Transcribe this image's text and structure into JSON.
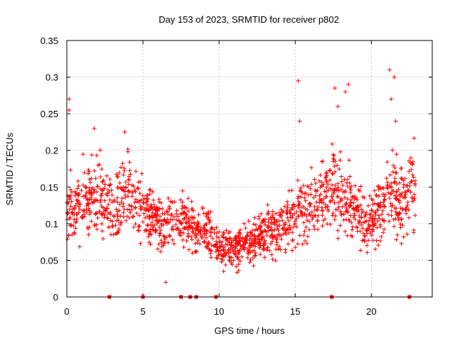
{
  "chart_data": {
    "type": "scatter",
    "title": "Day 153 of 2023, SRMTID for receiver p802",
    "xlabel": "GPS time / hours",
    "ylabel": "SRMTID / TECUs",
    "xlim": [
      0,
      24
    ],
    "ylim": [
      0,
      0.35
    ],
    "x_ticks": [
      0,
      5,
      10,
      15,
      20
    ],
    "y_ticks": [
      0,
      0.05,
      0.1,
      0.15,
      0.2,
      0.25,
      0.3,
      0.35
    ],
    "grid": true,
    "marker": "+",
    "series_color": "#ff0000",
    "gap_marker_hours": [
      2.8,
      5.0,
      7.5,
      8.1,
      8.5,
      9.8,
      17.4,
      22.5
    ],
    "envelope": [
      {
        "x": 0.0,
        "y": 0.11
      },
      {
        "x": 1.0,
        "y": 0.13
      },
      {
        "x": 2.0,
        "y": 0.14
      },
      {
        "x": 3.0,
        "y": 0.12
      },
      {
        "x": 4.0,
        "y": 0.14
      },
      {
        "x": 5.0,
        "y": 0.12
      },
      {
        "x": 6.0,
        "y": 0.1
      },
      {
        "x": 7.0,
        "y": 0.1
      },
      {
        "x": 8.0,
        "y": 0.1
      },
      {
        "x": 9.0,
        "y": 0.09
      },
      {
        "x": 10.0,
        "y": 0.07
      },
      {
        "x": 11.0,
        "y": 0.065
      },
      {
        "x": 12.0,
        "y": 0.075
      },
      {
        "x": 13.0,
        "y": 0.085
      },
      {
        "x": 14.0,
        "y": 0.09
      },
      {
        "x": 15.0,
        "y": 0.11
      },
      {
        "x": 16.0,
        "y": 0.12
      },
      {
        "x": 17.0,
        "y": 0.14
      },
      {
        "x": 18.0,
        "y": 0.15
      },
      {
        "x": 19.0,
        "y": 0.11
      },
      {
        "x": 20.0,
        "y": 0.1
      },
      {
        "x": 21.0,
        "y": 0.14
      },
      {
        "x": 22.0,
        "y": 0.13
      },
      {
        "x": 22.9,
        "y": 0.15
      }
    ],
    "highlights": [
      {
        "x": 0.15,
        "y": 0.27
      },
      {
        "x": 0.15,
        "y": 0.255
      },
      {
        "x": 1.8,
        "y": 0.23
      },
      {
        "x": 3.8,
        "y": 0.225
      },
      {
        "x": 15.2,
        "y": 0.295
      },
      {
        "x": 15.3,
        "y": 0.24
      },
      {
        "x": 17.6,
        "y": 0.285
      },
      {
        "x": 17.8,
        "y": 0.26
      },
      {
        "x": 18.3,
        "y": 0.28
      },
      {
        "x": 18.5,
        "y": 0.29
      },
      {
        "x": 21.2,
        "y": 0.31
      },
      {
        "x": 21.5,
        "y": 0.3
      },
      {
        "x": 21.3,
        "y": 0.27
      },
      {
        "x": 21.6,
        "y": 0.24
      },
      {
        "x": 6.5,
        "y": 0.02
      },
      {
        "x": 10.3,
        "y": 0.035
      }
    ]
  }
}
